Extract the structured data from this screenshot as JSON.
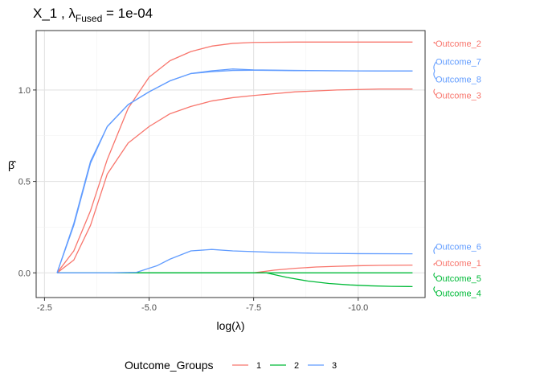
{
  "title": {
    "main": "X_1 ,  λ",
    "subscript": "Fused",
    "suffix": " = 1e-04"
  },
  "chart_data": {
    "type": "line",
    "xlabel": "log(λ)",
    "ylabel": "β̂",
    "x_reversed": true,
    "xlim": [
      -2.3,
      -11.6
    ],
    "ylim": [
      -0.135,
      1.325
    ],
    "xticks": [
      -2.5,
      -5.0,
      -7.5,
      -10.0
    ],
    "xtick_labels": [
      "-2.5",
      "-5.0",
      "-7.5",
      "-10.0"
    ],
    "yticks": [
      0.0,
      0.5,
      1.0
    ],
    "ytick_labels": [
      "0.0",
      "0.5",
      "1.0"
    ],
    "grid": true,
    "legend_position": "bottom",
    "legend": {
      "title": "Outcome_Groups",
      "entries": [
        {
          "label": "1",
          "color": "#F8766D"
        },
        {
          "label": "2",
          "color": "#00BA38"
        },
        {
          "label": "3",
          "color": "#619CFF"
        }
      ]
    },
    "group_colors": {
      "1": "#F8766D",
      "2": "#00BA38",
      "3": "#619CFF"
    },
    "series": [
      {
        "name": "Outcome_2",
        "group": "1",
        "x": [
          -2.8,
          -3.2,
          -3.6,
          -4.0,
          -4.5,
          -5.0,
          -5.5,
          -6.0,
          -6.5,
          -7.0,
          -7.5,
          -8.5,
          -9.5,
          -10.5,
          -11.3
        ],
        "y": [
          0.0,
          0.12,
          0.34,
          0.62,
          0.9,
          1.07,
          1.16,
          1.21,
          1.24,
          1.255,
          1.26,
          1.262,
          1.262,
          1.262,
          1.262
        ]
      },
      {
        "name": "Outcome_3",
        "group": "1",
        "x": [
          -2.8,
          -3.2,
          -3.6,
          -4.0,
          -4.5,
          -5.0,
          -5.5,
          -6.0,
          -6.5,
          -7.0,
          -7.5,
          -8.5,
          -9.5,
          -10.5,
          -11.3
        ],
        "y": [
          0.0,
          0.07,
          0.26,
          0.54,
          0.71,
          0.8,
          0.87,
          0.91,
          0.94,
          0.958,
          0.97,
          0.99,
          1.0,
          1.005,
          1.005
        ]
      },
      {
        "name": "Outcome_1",
        "group": "1",
        "x": [
          -2.8,
          -4.0,
          -5.0,
          -6.0,
          -7.0,
          -7.5,
          -8.0,
          -8.5,
          -9.0,
          -9.5,
          -10.0,
          -10.5,
          -11.3
        ],
        "y": [
          0.0,
          0.0,
          0.0,
          0.0,
          0.0,
          0.0,
          0.015,
          0.025,
          0.032,
          0.036,
          0.039,
          0.041,
          0.042
        ]
      },
      {
        "name": "Outcome_5",
        "group": "2",
        "x": [
          -2.8,
          -4.0,
          -5.0,
          -6.0,
          -7.0,
          -8.0,
          -9.0,
          -10.0,
          -11.3
        ],
        "y": [
          0.0,
          0.0,
          0.0,
          0.0,
          0.0,
          0.0,
          0.0,
          0.0,
          0.0
        ]
      },
      {
        "name": "Outcome_4",
        "group": "2",
        "x": [
          -2.8,
          -4.0,
          -5.0,
          -6.0,
          -7.0,
          -7.8,
          -8.3,
          -8.8,
          -9.3,
          -9.8,
          -10.3,
          -10.8,
          -11.3
        ],
        "y": [
          0.0,
          0.0,
          0.0,
          0.0,
          0.0,
          0.0,
          -0.025,
          -0.045,
          -0.058,
          -0.066,
          -0.071,
          -0.074,
          -0.075
        ]
      },
      {
        "name": "Outcome_7",
        "group": "3",
        "x": [
          -2.8,
          -3.2,
          -3.6,
          -4.0,
          -4.5,
          -5.0,
          -5.5,
          -6.0,
          -6.5,
          -7.0,
          -7.5,
          -8.5,
          -9.5,
          -10.5,
          -11.3
        ],
        "y": [
          0.0,
          0.27,
          0.61,
          0.8,
          0.92,
          0.99,
          1.05,
          1.09,
          1.105,
          1.115,
          1.11,
          1.107,
          1.105,
          1.104,
          1.104
        ]
      },
      {
        "name": "Outcome_8",
        "group": "3",
        "x": [
          -2.8,
          -3.2,
          -3.6,
          -4.0,
          -4.5,
          -5.0,
          -5.5,
          -6.0,
          -6.5,
          -7.0,
          -7.5,
          -8.5,
          -9.5,
          -10.5,
          -11.3
        ],
        "y": [
          0.0,
          0.26,
          0.6,
          0.8,
          0.92,
          0.99,
          1.05,
          1.09,
          1.1,
          1.107,
          1.108,
          1.106,
          1.105,
          1.104,
          1.104
        ]
      },
      {
        "name": "Outcome_6",
        "group": "3",
        "x": [
          -2.8,
          -4.0,
          -4.7,
          -5.2,
          -5.5,
          -6.0,
          -6.5,
          -7.0,
          -8.0,
          -9.0,
          -10.0,
          -11.3
        ],
        "y": [
          0.0,
          0.0,
          0.003,
          0.04,
          0.075,
          0.12,
          0.128,
          0.12,
          0.112,
          0.107,
          0.105,
          0.104
        ]
      }
    ],
    "end_labels": [
      {
        "text": "Outcome_2",
        "group": "1",
        "value": 1.262,
        "label_y": 1.255
      },
      {
        "text": "Outcome_7",
        "group": "3",
        "value": 1.104,
        "label_y": 1.155
      },
      {
        "text": "Outcome_8",
        "group": "3",
        "value": 1.104,
        "label_y": 1.058
      },
      {
        "text": "Outcome_3",
        "group": "1",
        "value": 1.005,
        "label_y": 0.97
      },
      {
        "text": "Outcome_6",
        "group": "3",
        "value": 0.104,
        "label_y": 0.145
      },
      {
        "text": "Outcome_1",
        "group": "1",
        "value": 0.042,
        "label_y": 0.055
      },
      {
        "text": "Outcome_5",
        "group": "2",
        "value": 0.0,
        "label_y": -0.03
      },
      {
        "text": "Outcome_4",
        "group": "2",
        "value": -0.075,
        "label_y": -0.11
      }
    ]
  }
}
